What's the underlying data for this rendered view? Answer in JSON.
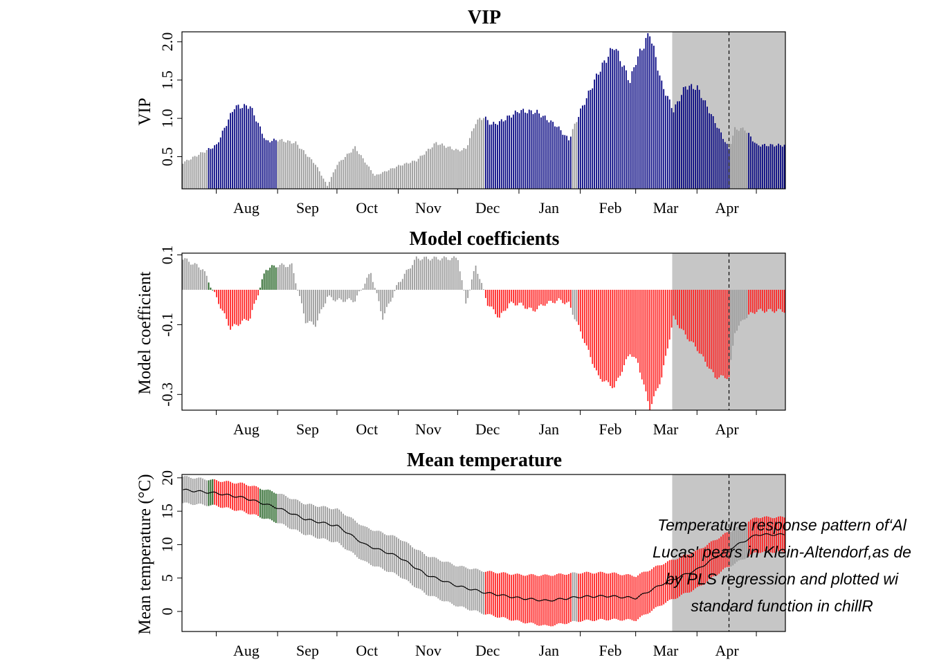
{
  "chart_data": [
    {
      "type": "bar",
      "title": "VIP",
      "ylabel": "VIP",
      "ylim": [
        0.08,
        2.13
      ],
      "yticks": [
        "0.5",
        "1.0",
        "1.5",
        "2.0"
      ],
      "ytick_values": [
        0.5,
        1.0,
        1.5,
        2.0
      ],
      "months": [
        "Aug",
        "Sep",
        "Oct",
        "Nov",
        "Dec",
        "Jan",
        "Feb",
        "Mar",
        "Apr"
      ],
      "shaded_region": {
        "from": "Mar 20",
        "to": "May 1"
      },
      "dashed_line": "Apr 17",
      "colors": {
        "important": "#00007f",
        "not_important": "#999999",
        "shade": "#c6c6c6"
      },
      "x_dates": [
        "Jul 15",
        "Aug 1",
        "Aug 10",
        "Aug 18",
        "Aug 26",
        "Sep 1",
        "Sep 10",
        "Sep 20",
        "Sep 26",
        "Oct 1",
        "Oct 10",
        "Oct 20",
        "Nov 1",
        "Nov 10",
        "Nov 20",
        "Dec 1",
        "Dec 5",
        "Dec 10",
        "Dec 14",
        "Dec 18",
        "Dec 22",
        "Jan 1",
        "Jan 10",
        "Jan 20",
        "Jan 26",
        "Feb 1",
        "Feb 10",
        "Feb 18",
        "Feb 26",
        "Mar 1",
        "Mar 8",
        "Mar 14",
        "Mar 20",
        "Mar 26",
        "Apr 1",
        "Apr 5",
        "Apr 10",
        "Apr 17",
        "Apr 20",
        "Apr 25",
        "May 1"
      ],
      "values": [
        0.42,
        0.65,
        1.15,
        1.16,
        0.7,
        0.72,
        0.68,
        0.4,
        0.12,
        0.4,
        0.62,
        0.25,
        0.38,
        0.45,
        0.68,
        0.58,
        0.6,
        0.95,
        1.02,
        0.92,
        0.95,
        1.1,
        1.08,
        0.9,
        0.72,
        1.1,
        1.6,
        1.95,
        1.48,
        1.75,
        2.12,
        1.45,
        1.1,
        1.42,
        1.4,
        1.2,
        0.95,
        0.6,
        0.86,
        0.86,
        0.65
      ],
      "important_ranges": [
        [
          "Jul 28",
          "Aug 31"
        ],
        [
          "Dec 15",
          "Jan 27"
        ],
        [
          "Jan 31",
          "Apr 17"
        ],
        [
          "Apr 27",
          "May 15"
        ]
      ],
      "note": "values at daily resolution interpolated from the points above"
    },
    {
      "type": "bar",
      "title": "Model coefficients",
      "ylabel": "Model coefficient",
      "ylim": [
        -0.345,
        0.105
      ],
      "yticks": [
        "0.1",
        "-0.1",
        "-0.3"
      ],
      "ytick_values": [
        0.1,
        -0.1,
        -0.3
      ],
      "months": [
        "Aug",
        "Sep",
        "Oct",
        "Nov",
        "Dec",
        "Jan",
        "Feb",
        "Mar",
        "Apr"
      ],
      "shaded_region": {
        "from": "Mar 20",
        "to": "May 1"
      },
      "dashed_line": "Apr 17",
      "colors": {
        "negative": "#ff2020",
        "positive": "#1a5c1a",
        "not_important": "#999999",
        "shade": "#c6c6c6"
      },
      "x_dates": [
        "Jul 15",
        "Jul 25",
        "Jul 30",
        "Aug 8",
        "Aug 18",
        "Aug 26",
        "Sep 1",
        "Sep 8",
        "Sep 15",
        "Sep 20",
        "Sep 26",
        "Oct 1",
        "Oct 10",
        "Oct 18",
        "Oct 24",
        "Nov 1",
        "Nov 10",
        "Nov 20",
        "Dec 1",
        "Dec 5",
        "Dec 10",
        "Dec 16",
        "Dec 22",
        "Dec 27",
        "Jan 1",
        "Jan 8",
        "Jan 14",
        "Jan 21",
        "Jan 26",
        "Feb 1",
        "Feb 10",
        "Feb 18",
        "Feb 26",
        "Mar 2",
        "Mar 8",
        "Mar 14",
        "Mar 20",
        "Mar 26",
        "Apr 1",
        "Apr 10",
        "Apr 17",
        "Apr 20",
        "Apr 25",
        "May 1"
      ],
      "values": [
        0.09,
        0.06,
        0.0,
        -0.11,
        -0.08,
        0.06,
        0.07,
        0.07,
        -0.09,
        -0.1,
        -0.02,
        -0.03,
        -0.03,
        0.05,
        -0.08,
        0.02,
        0.09,
        0.09,
        0.09,
        -0.04,
        0.07,
        -0.04,
        -0.08,
        -0.04,
        -0.04,
        -0.06,
        -0.04,
        -0.03,
        -0.04,
        -0.12,
        -0.25,
        -0.28,
        -0.18,
        -0.21,
        -0.34,
        -0.25,
        -0.08,
        -0.13,
        -0.17,
        -0.25,
        -0.25,
        -0.12,
        -0.08,
        -0.06
      ],
      "important_ranges": [
        [
          "Jul 28",
          "Aug 31"
        ],
        [
          "Dec 15",
          "Jan 27"
        ],
        [
          "Jan 31",
          "Apr 17"
        ],
        [
          "Apr 27",
          "May 15"
        ]
      ]
    },
    {
      "type": "bar",
      "title": "Mean temperature",
      "ylabel": "Mean temperature (°C)",
      "ylim": [
        -3,
        20.5
      ],
      "yticks": [
        "0",
        "5",
        "10",
        "15",
        "20"
      ],
      "ytick_values": [
        0,
        5,
        10,
        15,
        20
      ],
      "months": [
        "Aug",
        "Sep",
        "Oct",
        "Nov",
        "Dec",
        "Jan",
        "Feb",
        "Mar",
        "Apr"
      ],
      "shaded_region": {
        "from": "Mar 20",
        "to": "May 1"
      },
      "dashed_line": "Apr 17",
      "colors": {
        "negative": "#ff2020",
        "positive": "#1a5c1a",
        "not_important": "#999999",
        "shade": "#c6c6c6",
        "line": "#000000"
      },
      "x_dates": [
        "Jul 15",
        "Aug 1",
        "Aug 15",
        "Sep 1",
        "Sep 15",
        "Oct 1",
        "Oct 15",
        "Nov 1",
        "Nov 15",
        "Dec 1",
        "Dec 15",
        "Jan 1",
        "Jan 15",
        "Feb 1",
        "Feb 15",
        "Mar 1",
        "Mar 15",
        "Apr 1",
        "Apr 15",
        "May 1"
      ],
      "mean": [
        18.2,
        17.7,
        17.0,
        15.5,
        13.8,
        12.8,
        10.0,
        8.2,
        5.5,
        3.8,
        2.8,
        2.0,
        1.6,
        2.2,
        2.3,
        2.0,
        4.2,
        6.3,
        9.0,
        11.5
      ],
      "sd": [
        2.0,
        1.9,
        2.1,
        2.2,
        2.3,
        2.5,
        2.6,
        2.8,
        2.9,
        3.0,
        3.2,
        3.5,
        3.8,
        3.6,
        3.5,
        3.3,
        3.0,
        2.8,
        2.6,
        2.6
      ]
    }
  ],
  "caption": [
    "Temperature response pattern of‘Al",
    "Lucas' pears in Klein-Altendorf,as de",
    "by PLS regression and plotted wi",
    "standard function in chillR"
  ]
}
